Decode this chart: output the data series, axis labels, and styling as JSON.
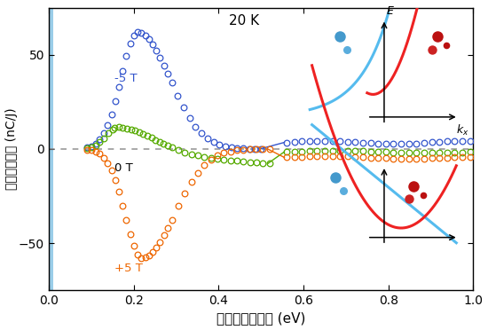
{
  "title": "20 K",
  "xlabel": "光子エネルギー (eV)",
  "ylabel": "規格化光電流 (nC/J)",
  "xlim": [
    0.0,
    1.0
  ],
  "ylim": [
    -75,
    75
  ],
  "yticks": [
    -50,
    0,
    50
  ],
  "xticks": [
    0.0,
    0.2,
    0.4,
    0.6,
    0.8,
    1.0
  ],
  "label_m5T": "-5 T",
  "label_0T": "0 T",
  "label_p5T": "+5 T",
  "color_blue": "#3355CC",
  "color_green": "#55AA00",
  "color_orange": "#EE6600",
  "bg_color_left": "#FFFFFF",
  "bg_color_right": "#9ACDE8",
  "dashed_zero_color": "#888888",
  "ins_cyan": "#55BBEE",
  "ins_red": "#EE2222"
}
